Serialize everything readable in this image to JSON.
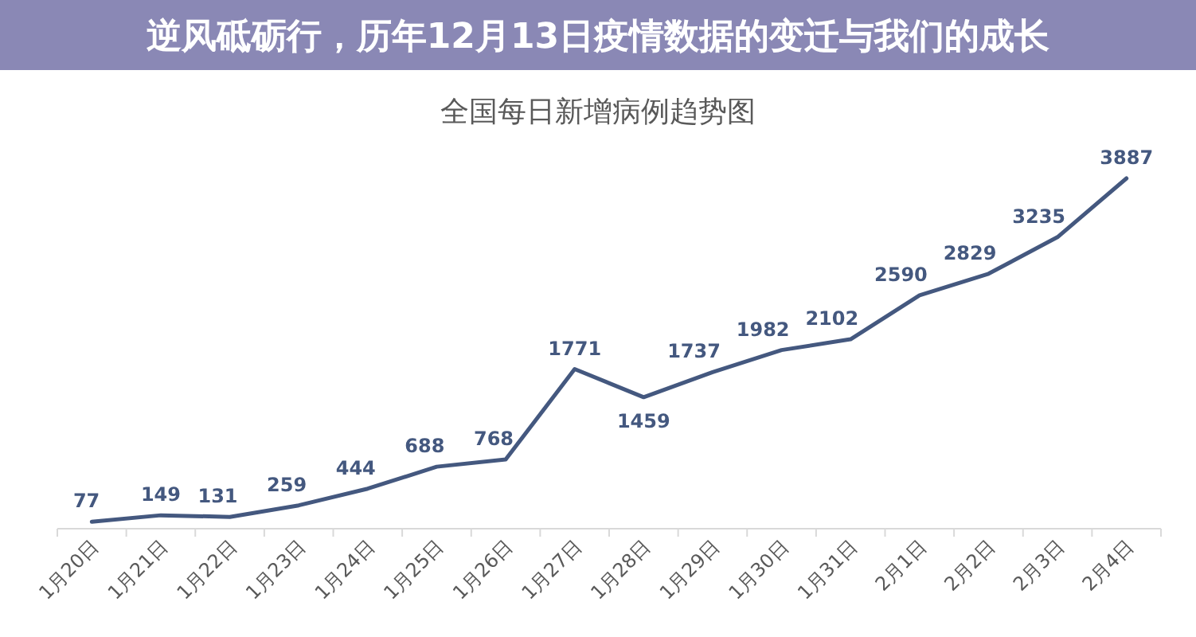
{
  "chart_data": {
    "type": "line",
    "title": "全国每日新增病例趋势图",
    "annotations": [
      "逆风砥砺行，历年12月13日疫情数据的变迁与我们的成长"
    ],
    "categories": [
      "1月20日",
      "1月21日",
      "1月22日",
      "1月23日",
      "1月24日",
      "1月25日",
      "1月26日",
      "1月27日",
      "1月28日",
      "1月29日",
      "1月30日",
      "1月31日",
      "2月1日",
      "2月2日",
      "2月3日",
      "2月4日"
    ],
    "values": [
      77,
      149,
      131,
      259,
      444,
      688,
      768,
      1771,
      1459,
      1737,
      1982,
      2102,
      2590,
      2829,
      3235,
      3887
    ],
    "color": "#44587f",
    "data_labels": true
  }
}
